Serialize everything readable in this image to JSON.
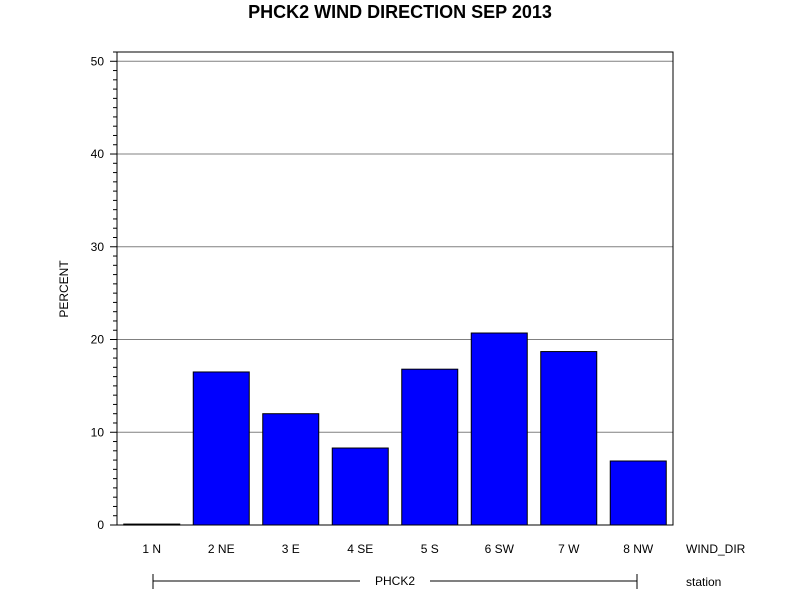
{
  "chart_data": {
    "type": "bar",
    "title": "PHCK2 WIND DIRECTION SEP 2013",
    "ylabel": "PERCENT",
    "xlabel": "WIND_DIR",
    "group_axis_label": "station",
    "group": "PHCK2",
    "categories": [
      "1 N",
      "2 NE",
      "3 E",
      "4 SE",
      "5 S",
      "6 SW",
      "7 W",
      "8 NW"
    ],
    "values": [
      0.1,
      16.5,
      12.0,
      8.3,
      16.8,
      20.7,
      18.7,
      6.9
    ],
    "ylim": [
      0,
      51
    ],
    "yticks": [
      0,
      10,
      20,
      30,
      40,
      50
    ],
    "grid": true,
    "bar_color": "#0000ff"
  }
}
